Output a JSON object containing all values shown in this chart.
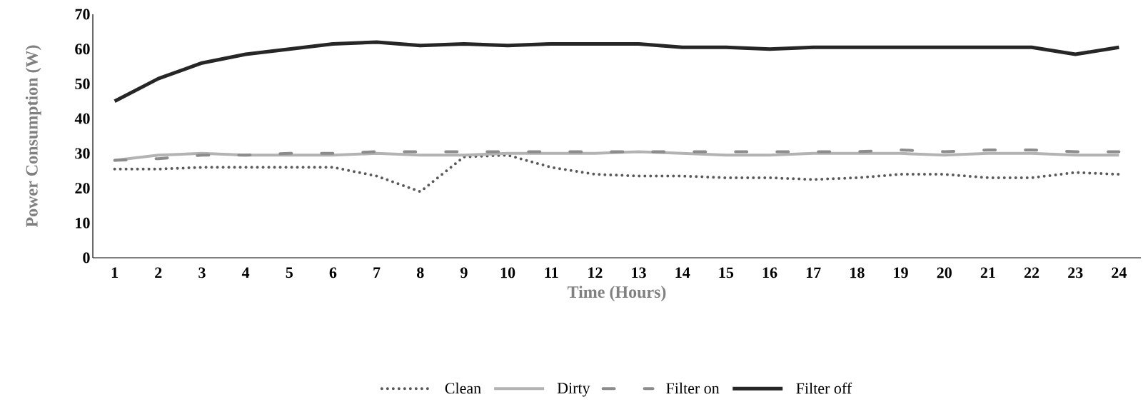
{
  "chart_data": {
    "type": "line",
    "xlabel": "Time (Hours)",
    "ylabel": "Power Consumption (W)",
    "categories": [
      "1",
      "2",
      "3",
      "4",
      "5",
      "6",
      "7",
      "8",
      "9",
      "10",
      "11",
      "12",
      "13",
      "14",
      "15",
      "16",
      "17",
      "18",
      "19",
      "20",
      "21",
      "22",
      "23",
      "24"
    ],
    "ylim": [
      0,
      70
    ],
    "yticks": [
      0,
      10,
      20,
      30,
      40,
      50,
      60,
      70
    ],
    "grid": false,
    "legend": "bottom",
    "marker": "none",
    "series": [
      {
        "name": "Clean",
        "color": "#595959",
        "line_style": "dotted",
        "values": [
          25.5,
          25.5,
          26,
          26,
          26,
          26,
          23.5,
          19,
          29,
          29.5,
          26,
          24,
          23.5,
          23.5,
          23,
          23,
          22.5,
          23,
          24,
          24,
          23,
          23,
          24.5,
          24
        ]
      },
      {
        "name": "Dirty",
        "color": "#b3b3b3",
        "line_style": "solid",
        "values": [
          28,
          29.5,
          30,
          29.5,
          29.5,
          29.5,
          30,
          29.5,
          29.5,
          30,
          30,
          30,
          30.5,
          30,
          29.5,
          29.5,
          30,
          30,
          30,
          29.5,
          30,
          30,
          29.5,
          29.5
        ]
      },
      {
        "name": "Filter on",
        "color": "#8c8c8c",
        "line_style": "dashdot",
        "values": [
          28,
          28.5,
          29.5,
          29.5,
          30,
          30,
          30.5,
          30.5,
          30.5,
          30.5,
          30.5,
          30.5,
          30.5,
          30.5,
          30.5,
          30.5,
          30.5,
          30.5,
          31,
          30.5,
          31,
          31,
          30.5,
          30.5
        ]
      },
      {
        "name": "Filter off",
        "color": "#262626",
        "line_style": "solid",
        "values": [
          45,
          51.5,
          56,
          58.5,
          60,
          61.5,
          62,
          61,
          61.5,
          61,
          61.5,
          61.5,
          61.5,
          60.5,
          60.5,
          60,
          60.5,
          60.5,
          60.5,
          60.5,
          60.5,
          60.5,
          58.5,
          60.5
        ]
      }
    ]
  }
}
